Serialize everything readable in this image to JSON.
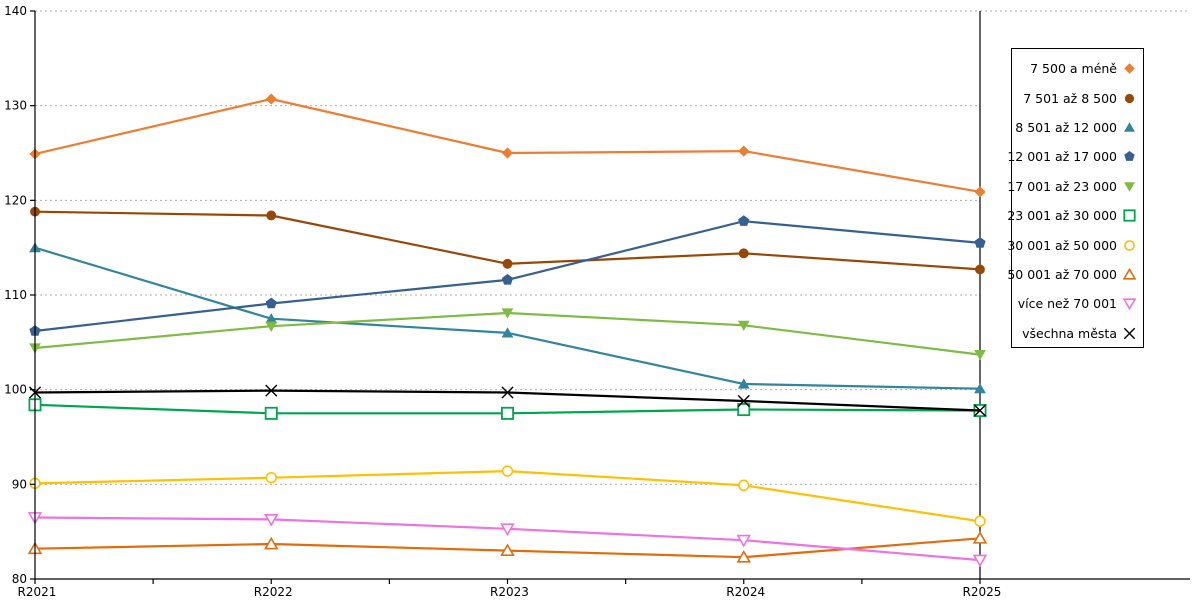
{
  "chart_data": {
    "type": "line",
    "title": "",
    "xlabel": "",
    "ylabel": "",
    "x_labels": [
      "R2021",
      "R2022",
      "R2023",
      "R2024",
      "R2025"
    ],
    "ylim": [
      80,
      140
    ],
    "y_ticks": [
      80,
      90,
      100,
      110,
      120,
      130,
      140
    ],
    "grid": "horizontal-dashed",
    "grid_color": "#ADADAD",
    "legend_position": "right",
    "series": [
      {
        "name": "7 500 a méně",
        "marker": "diamond",
        "filled": true,
        "color": "#ED7D31",
        "values": [
          124.9,
          130.7,
          125.0,
          125.2,
          120.9
        ]
      },
      {
        "name": "7 501 až 8 500",
        "marker": "circle",
        "filled": true,
        "color": "#974706",
        "values": [
          118.8,
          118.4,
          113.3,
          114.4,
          112.7
        ]
      },
      {
        "name": "8 501 až 12 000",
        "marker": "triangle-up",
        "filled": true,
        "color": "#31859C",
        "values": [
          115.0,
          107.5,
          106.0,
          100.6,
          100.1
        ]
      },
      {
        "name": "12 001 až 17 000",
        "marker": "pentagon",
        "filled": true,
        "color": "#376092",
        "values": [
          106.2,
          109.1,
          111.6,
          117.8,
          115.5
        ]
      },
      {
        "name": "17 001 až 23 000",
        "marker": "triangle-down",
        "filled": true,
        "color": "#7DBB42",
        "values": [
          104.4,
          106.7,
          108.1,
          106.8,
          103.7
        ]
      },
      {
        "name": "23 001 až 30 000",
        "marker": "square",
        "filled": false,
        "color": "#00A64F",
        "values": [
          98.4,
          97.5,
          97.5,
          97.9,
          97.8
        ]
      },
      {
        "name": "30 001 až 50 000",
        "marker": "circle",
        "filled": false,
        "color": "#FFC000",
        "values": [
          90.1,
          90.7,
          91.4,
          89.9,
          86.1
        ]
      },
      {
        "name": "50 001 až 70 000",
        "marker": "triangle-up",
        "filled": false,
        "color": "#E36C0A",
        "values": [
          83.2,
          83.7,
          83.0,
          82.3,
          84.3
        ]
      },
      {
        "name": "více než 70 001",
        "marker": "triangle-down",
        "filled": false,
        "color": "#EE72E2",
        "values": [
          86.5,
          86.3,
          85.3,
          84.1,
          82.0
        ]
      },
      {
        "name": "všechna města",
        "marker": "x",
        "filled": false,
        "color": "#000000",
        "values": [
          99.7,
          99.9,
          99.7,
          98.8,
          97.8
        ]
      }
    ]
  }
}
